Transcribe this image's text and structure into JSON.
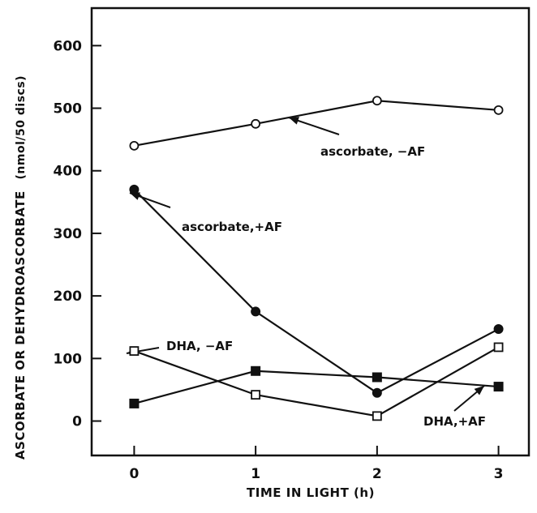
{
  "chart_data": {
    "type": "line",
    "title": "",
    "xlabel": "TIME IN LIGHT (h)",
    "ylabel": "ASCORBATE OR DEHYDROASCORBATE",
    "ylabel_unit": "(nmol/50 discs)",
    "x": [
      0,
      1,
      2,
      3
    ],
    "x_tick_labels": [
      "0",
      "1",
      "2",
      "3"
    ],
    "xlim": [
      -0.35,
      3.25
    ],
    "ylim": [
      -55,
      660
    ],
    "y_tick_labels": [
      "0",
      "100",
      "200",
      "300",
      "400",
      "500",
      "600"
    ],
    "y_ticks": [
      0,
      100,
      200,
      300,
      400,
      500,
      600
    ],
    "grid": false,
    "series": [
      {
        "name": "ascorbate, −AF",
        "marker": "open-circle",
        "values": [
          440,
          475,
          512,
          497
        ]
      },
      {
        "name": "ascorbate,+AF",
        "marker": "filled-circle",
        "values": [
          370,
          175,
          45,
          147
        ]
      },
      {
        "name": "DHA, −AF",
        "marker": "open-square",
        "values": [
          112,
          42,
          8,
          118
        ]
      },
      {
        "name": "DHA,+AF",
        "marker": "filled-square",
        "values": [
          28,
          80,
          70,
          55
        ]
      }
    ],
    "annotations": [
      {
        "text": "ascorbate, −AF",
        "series": 0
      },
      {
        "text": "ascorbate,+AF",
        "series": 1
      },
      {
        "text": "DHA, −AF",
        "series": 2
      },
      {
        "text": "DHA,+AF",
        "series": 3
      }
    ]
  }
}
